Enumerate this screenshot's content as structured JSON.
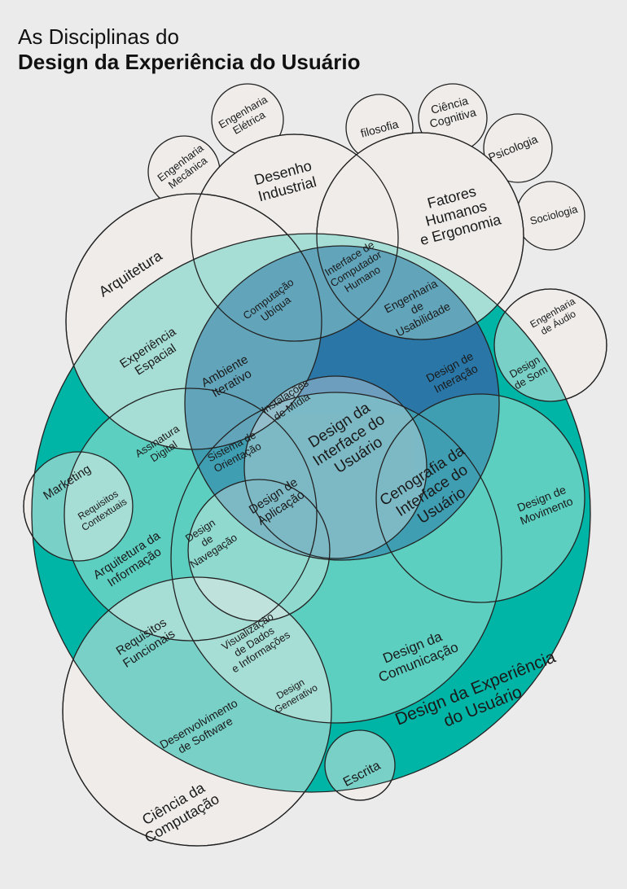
{
  "title": {
    "line1": "As Disciplinas do",
    "line2": "Design da Experiência do Usuário"
  },
  "colors": {
    "background": "#ebebeb",
    "outer_teal": "#00b5a5",
    "mid_teal": "#5ccfc0",
    "blue": "#2a77a6",
    "light_overlay": "#efecea",
    "stroke": "#222222"
  },
  "labels": {
    "ux_design": [
      "Design da Experiência",
      "do Usuário"
    ],
    "arquitetura": [
      "Arquitetura"
    ],
    "desenho_industrial": [
      "Desenho",
      "Industrial"
    ],
    "fatores_humanos": [
      "Fatores",
      "Humanos",
      "e Ergonomia"
    ],
    "eng_mecanica": [
      "Engenharia",
      "Mecânica"
    ],
    "eng_eletrica": [
      "Engenharia",
      "Elétrica"
    ],
    "filosofia": [
      "filosofia"
    ],
    "ciencia_cognitiva": [
      "Ciência",
      "Cognitiva"
    ],
    "psicologia": [
      "Psicologia"
    ],
    "sociologia": [
      "Sociologia"
    ],
    "computacao_ubiqua": [
      "Computação",
      "Ubíqua"
    ],
    "ihc": [
      "Interface de",
      "Computador",
      "Humano"
    ],
    "eng_usabilidade": [
      "Engenharia",
      "de",
      "Usabilidade"
    ],
    "experiencia_espacial": [
      "Experiência",
      "Espacial"
    ],
    "ambiente_iterativo": [
      "Ambiente",
      "Iterativo"
    ],
    "design_interacao": [
      "Design de",
      "Interação"
    ],
    "eng_audio": [
      "Engenharia",
      "de Áudio"
    ],
    "design_som": [
      "Design",
      "de Som"
    ],
    "instalacoes_midia": [
      "Instalações",
      "de Mídia"
    ],
    "design_interface": [
      "Design da",
      "Interface do",
      "Usuário"
    ],
    "assinatura_digital": [
      "Assinatura",
      "Digital"
    ],
    "sistema_orientacao": [
      "Sistema de",
      "Orientação"
    ],
    "marketing": [
      "Marketing"
    ],
    "requisitos_contextuais": [
      "Requisitos",
      "Contextuais"
    ],
    "cenografia": [
      "Cenografia da",
      "Interface do",
      "Usuário"
    ],
    "design_movimento": [
      "Design de",
      "Movimento"
    ],
    "design_aplicacao": [
      "Design de",
      "Aplicação"
    ],
    "design_navegacao": [
      "Design",
      "de",
      "Navegação"
    ],
    "arquitetura_informacao": [
      "Arquitetura da",
      "Informação"
    ],
    "requisitos_funcionais": [
      "Requisitos",
      "Funcionais"
    ],
    "visualizacao": [
      "Visualização",
      "de Dados",
      "e Informações"
    ],
    "design_comunicacao": [
      "Design da",
      "Comunicação"
    ],
    "design_generativo": [
      "Design",
      "Generativo"
    ],
    "desenvolvimento_software": [
      "Desenvolvimento",
      "de Software"
    ],
    "escrita": [
      "Escrita"
    ],
    "ciencia_computacao": [
      "Ciência da",
      "Computação"
    ]
  }
}
